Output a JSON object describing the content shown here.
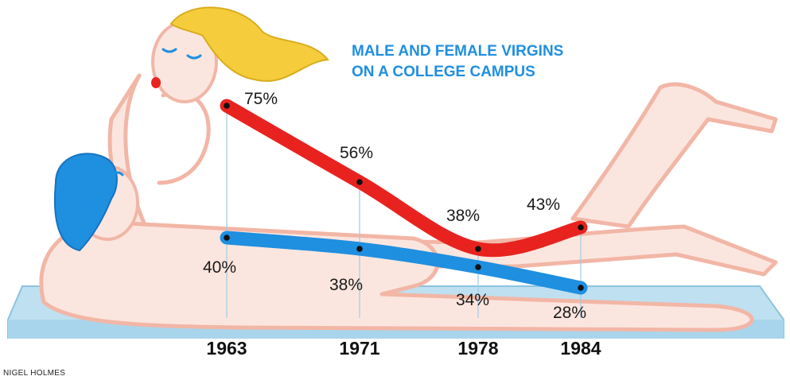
{
  "chart_data": {
    "type": "line",
    "title": [
      "MALE AND FEMALE VIRGINS",
      "ON A COLLEGE CAMPUS"
    ],
    "categories": [
      "1963",
      "1971",
      "1978",
      "1984"
    ],
    "series": [
      {
        "values": [
          75,
          56,
          38,
          43
        ],
        "labels": [
          "75%",
          "56%",
          "38%",
          "43%"
        ],
        "color": "#e8231f"
      },
      {
        "values": [
          40,
          38,
          34,
          28
        ],
        "labels": [
          "40%",
          "38%",
          "34%",
          "28%"
        ],
        "color": "#1f8fe0"
      }
    ],
    "ylim": [
      0,
      100
    ],
    "grid": false,
    "legend": "none"
  },
  "credit": "NIGEL HOLMES",
  "colors": {
    "figure_fill": "#fbe6df",
    "figure_outline": "#f2b6a6",
    "mattress": "#bfe0f0",
    "female_hair": "#f5cd3c",
    "male_hair": "#1f8fe0"
  }
}
